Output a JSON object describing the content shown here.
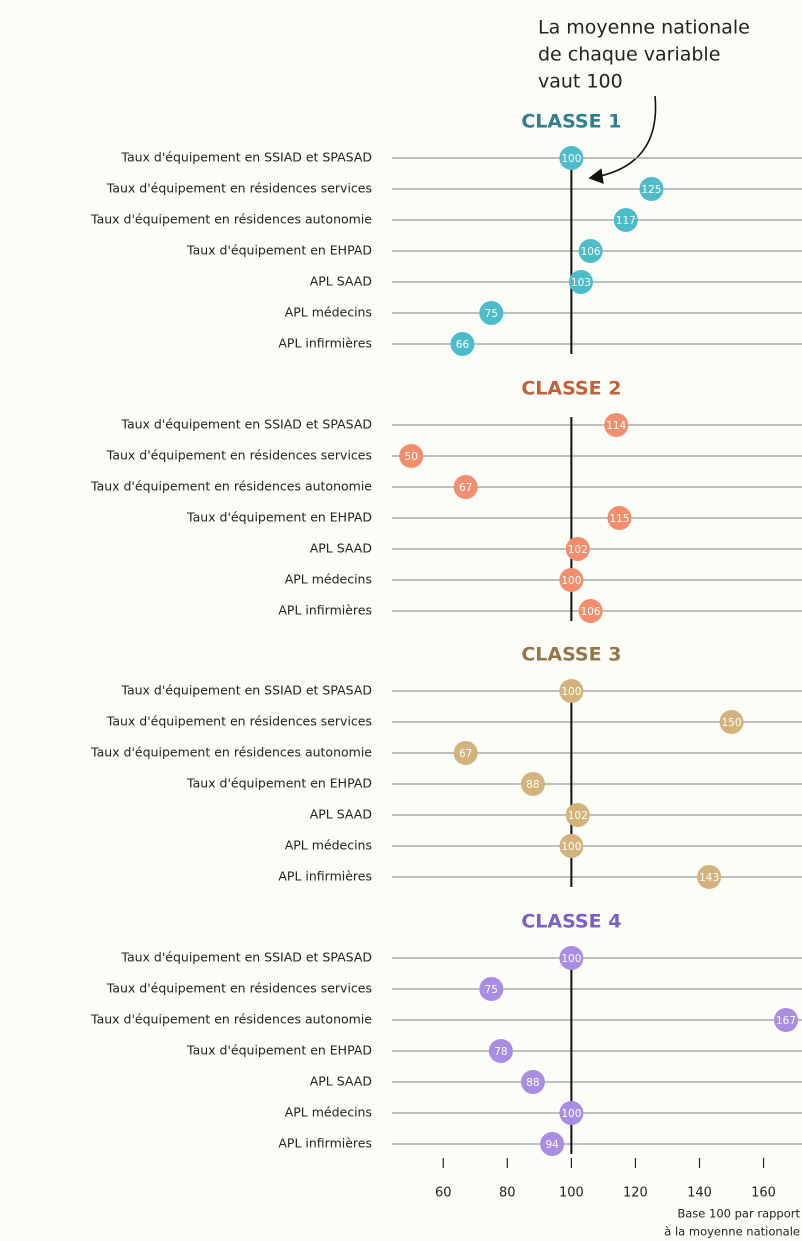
{
  "chart_data": {
    "type": "dot",
    "annotation": [
      "La moyenne nationale",
      "de chaque variable",
      "vaut 100"
    ],
    "categories": [
      "Taux d'équipement en SSIAD et SPASAD",
      "Taux d'équipement en résidences services",
      "Taux d'équipement en résidences autonomie",
      "Taux d'équipement en EHPAD",
      "APL SAAD",
      "APL médecins",
      "APL infirmières"
    ],
    "series": [
      {
        "name": "CLASSE 1",
        "color": "#4cbccb",
        "title_color": "#2f7f8e",
        "values": [
          100,
          125,
          117,
          106,
          103,
          75,
          66
        ]
      },
      {
        "name": "CLASSE 2",
        "color": "#f28e6e",
        "title_color": "#c45f3c",
        "values": [
          114,
          50,
          67,
          115,
          102,
          100,
          106
        ]
      },
      {
        "name": "CLASSE 3",
        "color": "#d4b27c",
        "title_color": "#957649",
        "values": [
          100,
          150,
          67,
          88,
          102,
          100,
          143
        ]
      },
      {
        "name": "CLASSE 4",
        "color": "#a98de2",
        "title_color": "#7c5fc6",
        "values": [
          100,
          75,
          167,
          78,
          88,
          100,
          94
        ]
      }
    ],
    "reference_line": 100,
    "xlim": [
      44,
      172
    ],
    "xticks": [
      60,
      80,
      100,
      120,
      140,
      160
    ],
    "xlabel": [
      "Base 100 par rapport",
      "à la moyenne nationale"
    ]
  }
}
